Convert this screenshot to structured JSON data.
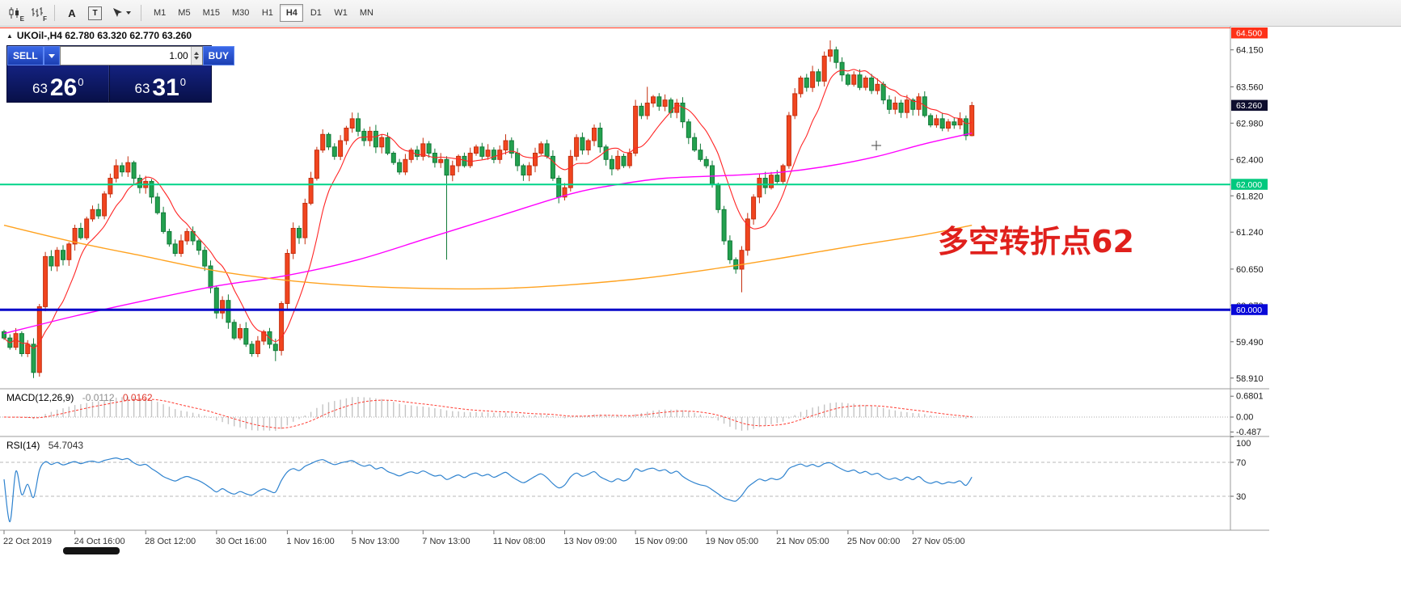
{
  "toolbar": {
    "chart_mode_icons": [
      {
        "name": "candlestick-chart-icon",
        "sub": "E"
      },
      {
        "name": "bar-chart-icon",
        "sub": "F"
      }
    ],
    "annotate_tool_label": "A",
    "text_tool_label": "T",
    "timeframes": [
      "M1",
      "M5",
      "M15",
      "M30",
      "H1",
      "H4",
      "D1",
      "W1",
      "MN"
    ],
    "active_timeframe": "H4"
  },
  "symbol_header": {
    "collapse_icon": "▲",
    "text": "UKOil-,H4  62.780 63.320 62.770 63.260"
  },
  "trade_panel": {
    "sell_label": "SELL",
    "buy_label": "BUY",
    "volume": "1.00",
    "sell_price": {
      "big": "63",
      "pips": "26",
      "sup": "0"
    },
    "buy_price": {
      "big": "63",
      "pips": "31",
      "sup": "0"
    }
  },
  "annotation": {
    "text": "多空转折点62",
    "color": "#e0201c"
  },
  "price_scale": {
    "ticks": [
      {
        "label": "64.150",
        "price": 64.15
      },
      {
        "label": "63.560",
        "price": 63.56
      },
      {
        "label": "62.980",
        "price": 62.98
      },
      {
        "label": "62.400",
        "price": 62.4
      },
      {
        "label": "61.820",
        "price": 61.82
      },
      {
        "label": "61.240",
        "price": 61.24
      },
      {
        "label": "60.650",
        "price": 60.65
      },
      {
        "label": "60.070",
        "price": 60.07
      },
      {
        "label": "59.490",
        "price": 59.49
      },
      {
        "label": "58.910",
        "price": 58.91
      }
    ],
    "badges": [
      {
        "label": "64.500",
        "price": 64.5,
        "color": "#fe3118"
      },
      {
        "label": "63.260",
        "price": 63.26,
        "color": "#0e0e2e"
      },
      {
        "label": "62.000",
        "price": 62.0,
        "color": "#00c97e"
      },
      {
        "label": "60.000",
        "price": 60.0,
        "color": "#0808d8"
      }
    ]
  },
  "macd_panel": {
    "name": "MACD(12,26,9)",
    "value_main": "-0.0112",
    "value_signal": "0.0162",
    "scale": [
      {
        "label": "0.6801",
        "value": 0.6801
      },
      {
        "label": "0.00",
        "value": 0
      },
      {
        "label": "-0.487",
        "value": -0.487
      }
    ]
  },
  "rsi_panel": {
    "name": "RSI(14)",
    "value": "54.7043",
    "scale": [
      {
        "label": "100",
        "value": 100
      },
      {
        "label": "70",
        "value": 70
      },
      {
        "label": "30",
        "value": 30
      }
    ],
    "levels": [
      70,
      30
    ]
  },
  "time_axis": [
    {
      "label": "22 Oct 2019",
      "candle": 0
    },
    {
      "label": "24 Oct 16:00",
      "candle": 12
    },
    {
      "label": "28 Oct 12:00",
      "candle": 24
    },
    {
      "label": "30 Oct 16:00",
      "candle": 36
    },
    {
      "label": "1 Nov 16:00",
      "candle": 48
    },
    {
      "label": "5 Nov 13:00",
      "candle": 59
    },
    {
      "label": "7 Nov 13:00",
      "candle": 71
    },
    {
      "label": "11 Nov 08:00",
      "candle": 83
    },
    {
      "label": "13 Nov 09:00",
      "candle": 95
    },
    {
      "label": "15 Nov 09:00",
      "candle": 107
    },
    {
      "label": "19 Nov 05:00",
      "candle": 119
    },
    {
      "label": "21 Nov 05:00",
      "candle": 131
    },
    {
      "label": "25 Nov 00:00",
      "candle": 143
    },
    {
      "label": "27 Nov 05:00",
      "candle": 154
    }
  ],
  "chart_data": {
    "type": "candlestick",
    "symbol": "UKOil-",
    "timeframe": "H4",
    "last_bar": {
      "open": 62.78,
      "high": 63.32,
      "low": 62.77,
      "close": 63.26
    },
    "price_axis": {
      "min": 58.74,
      "max": 64.52
    },
    "first_open": 59.65,
    "open_rule": "previous_close",
    "closes": [
      59.55,
      59.4,
      59.62,
      59.3,
      59.45,
      59.0,
      60.05,
      60.85,
      60.7,
      60.95,
      60.8,
      61.05,
      61.3,
      61.15,
      61.45,
      61.6,
      61.5,
      61.85,
      62.1,
      62.3,
      62.2,
      62.35,
      62.1,
      61.95,
      62.05,
      61.8,
      61.55,
      61.25,
      61.05,
      60.9,
      61.1,
      61.25,
      61.1,
      60.95,
      60.7,
      60.35,
      59.95,
      60.15,
      59.8,
      59.55,
      59.7,
      59.45,
      59.3,
      59.5,
      59.65,
      59.45,
      59.35,
      60.1,
      60.9,
      61.3,
      61.15,
      61.7,
      62.1,
      62.55,
      62.8,
      62.6,
      62.45,
      62.7,
      62.9,
      63.05,
      62.85,
      62.7,
      62.85,
      62.6,
      62.75,
      62.5,
      62.35,
      62.2,
      62.4,
      62.55,
      62.45,
      62.65,
      62.5,
      62.35,
      62.4,
      62.15,
      62.3,
      62.45,
      62.3,
      62.5,
      62.6,
      62.45,
      62.55,
      62.4,
      62.55,
      62.7,
      62.5,
      62.3,
      62.15,
      62.3,
      62.5,
      62.65,
      62.45,
      62.1,
      61.8,
      61.95,
      62.45,
      62.75,
      62.55,
      62.7,
      62.9,
      62.6,
      62.4,
      62.25,
      62.45,
      62.3,
      62.5,
      63.25,
      63.1,
      63.3,
      63.4,
      63.25,
      63.35,
      63.15,
      63.3,
      63.0,
      62.75,
      62.55,
      62.4,
      62.3,
      62.0,
      61.6,
      61.1,
      60.8,
      60.65,
      60.95,
      61.45,
      61.8,
      62.1,
      61.95,
      62.15,
      62.05,
      62.3,
      63.1,
      63.45,
      63.7,
      63.55,
      63.8,
      63.65,
      64.05,
      64.15,
      63.95,
      63.75,
      63.6,
      63.75,
      63.55,
      63.7,
      63.5,
      63.6,
      63.35,
      63.2,
      63.3,
      63.15,
      63.35,
      63.2,
      63.4,
      63.1,
      62.95,
      63.05,
      62.9,
      63.0,
      62.95,
      63.05,
      62.78,
      63.26
    ],
    "wick_overrides": {
      "5": {
        "low": 58.91
      },
      "21": {
        "high": 62.45
      },
      "46": {
        "low": 59.18
      },
      "59": {
        "high": 63.15
      },
      "75": {
        "low": 60.8
      },
      "94": {
        "low": 61.7
      },
      "109": {
        "high": 63.56
      },
      "125": {
        "low": 60.28
      },
      "140": {
        "high": 64.3
      },
      "164": {
        "open": 62.78,
        "high": 63.32,
        "low": 62.77,
        "close": 63.26
      }
    },
    "colors": {
      "up": "#f1451f",
      "up_border": "#c53010",
      "down": "#23a14f",
      "down_border": "#127a38",
      "ma_fast": "#ff2626",
      "ma_medium": "#ff00ff",
      "ma_slow": "#ffa21f",
      "macd_hist": "#c4c4c4",
      "macd_signal": "#ff3b30",
      "rsi": "#2f83cf"
    },
    "hlines": [
      {
        "price": 64.5,
        "color": "#fe3118",
        "width": 1
      },
      {
        "price": 62.0,
        "color": "#00d388",
        "width": 2
      },
      {
        "price": 60.0,
        "color": "#0404c8",
        "width": 3
      }
    ],
    "ma_fast_period": 8,
    "ma_medium_waypoints": [
      [
        0,
        59.62
      ],
      [
        12,
        59.9
      ],
      [
        24,
        60.15
      ],
      [
        36,
        60.38
      ],
      [
        48,
        60.55
      ],
      [
        60,
        60.8
      ],
      [
        72,
        61.15
      ],
      [
        84,
        61.5
      ],
      [
        96,
        61.85
      ],
      [
        104,
        62.0
      ],
      [
        112,
        62.1
      ],
      [
        124,
        62.15
      ],
      [
        132,
        62.2
      ],
      [
        140,
        62.3
      ],
      [
        148,
        62.45
      ],
      [
        156,
        62.65
      ],
      [
        164,
        62.82
      ]
    ],
    "ma_slow_waypoints": [
      [
        0,
        61.35
      ],
      [
        12,
        61.08
      ],
      [
        24,
        60.85
      ],
      [
        36,
        60.62
      ],
      [
        48,
        60.47
      ],
      [
        60,
        60.38
      ],
      [
        72,
        60.34
      ],
      [
        84,
        60.34
      ],
      [
        96,
        60.4
      ],
      [
        108,
        60.5
      ],
      [
        120,
        60.65
      ],
      [
        132,
        60.83
      ],
      [
        144,
        61.02
      ],
      [
        156,
        61.2
      ],
      [
        164,
        61.35
      ]
    ],
    "indicators": [
      {
        "name": "MACD",
        "params": [
          12,
          26,
          9
        ],
        "last_main": -0.0112,
        "last_signal": 0.0162
      },
      {
        "name": "RSI",
        "params": [
          14
        ],
        "last": 54.7043
      }
    ]
  }
}
